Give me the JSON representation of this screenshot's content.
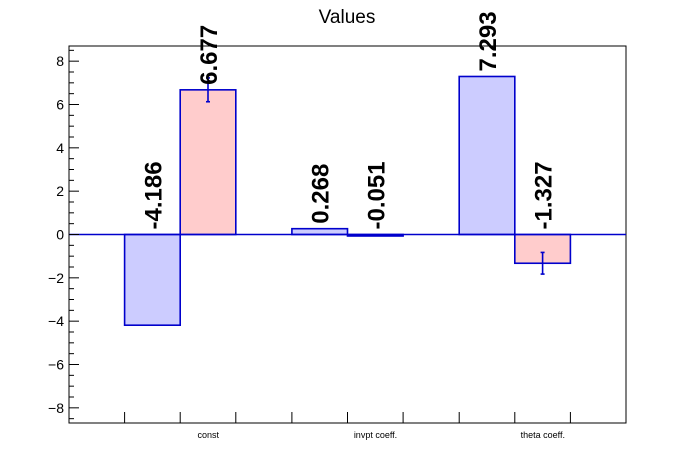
{
  "chart_data": {
    "type": "bar",
    "title": "Values",
    "categories": [
      "const",
      "invpt coeff.",
      "theta coeff."
    ],
    "ylim": [
      -8.7,
      8.7
    ],
    "yticks": [
      -8,
      -6,
      -4,
      -2,
      0,
      2,
      4,
      6,
      8
    ],
    "ytick_labels": [
      "−8",
      "−6",
      "−4",
      "−2",
      "0",
      "2",
      "4",
      "6",
      "8"
    ],
    "grid": false,
    "legend": "none",
    "series": [
      {
        "color": "#ccccff",
        "values": [
          -4.186,
          0.268,
          7.293
        ],
        "labels": [
          "-4.186",
          "0.268",
          "7.293"
        ],
        "errors": [
          0,
          0,
          0
        ]
      },
      {
        "color": "#ffcccc",
        "values": [
          6.677,
          -0.051,
          -1.327
        ],
        "labels": [
          "6.677",
          "-0.051",
          "-1.327"
        ],
        "errors": [
          0.55,
          0,
          0.5
        ]
      }
    ],
    "outline_color": "#0000cc"
  }
}
